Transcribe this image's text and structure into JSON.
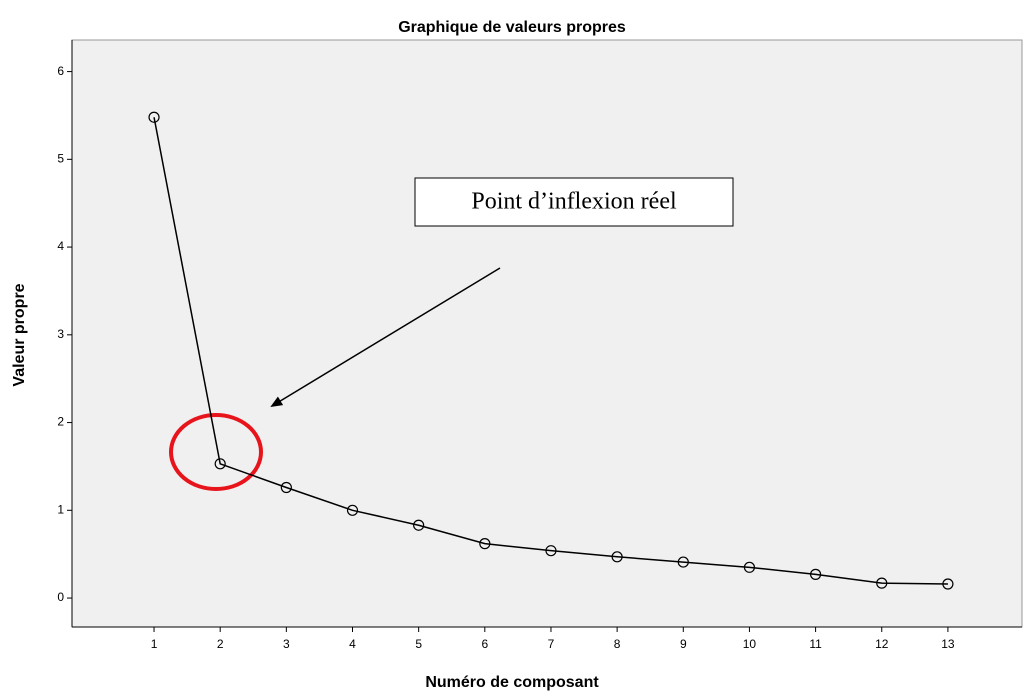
{
  "chart_data": {
    "type": "line",
    "title": "Graphique de valeurs propres",
    "x_label": "Numéro de composant",
    "y_label": "Valeur propre",
    "annotation": "Point d’inflexion réel",
    "x": [
      1,
      2,
      3,
      4,
      5,
      6,
      7,
      8,
      9,
      10,
      11,
      12,
      13
    ],
    "values": [
      5.48,
      1.53,
      1.26,
      1.0,
      0.83,
      0.62,
      0.54,
      0.47,
      0.41,
      0.35,
      0.27,
      0.17,
      0.16
    ],
    "color": "#000000",
    "xlim": [
      -0.24,
      14.12
    ],
    "xticks": [
      1,
      2,
      3,
      4,
      5,
      6,
      7,
      8,
      9,
      10,
      11,
      12,
      13
    ],
    "ylim": [
      -0.33,
      6.36
    ],
    "yticks": [
      0,
      1,
      2,
      3,
      4,
      5,
      6
    ],
    "grid": false
  }
}
